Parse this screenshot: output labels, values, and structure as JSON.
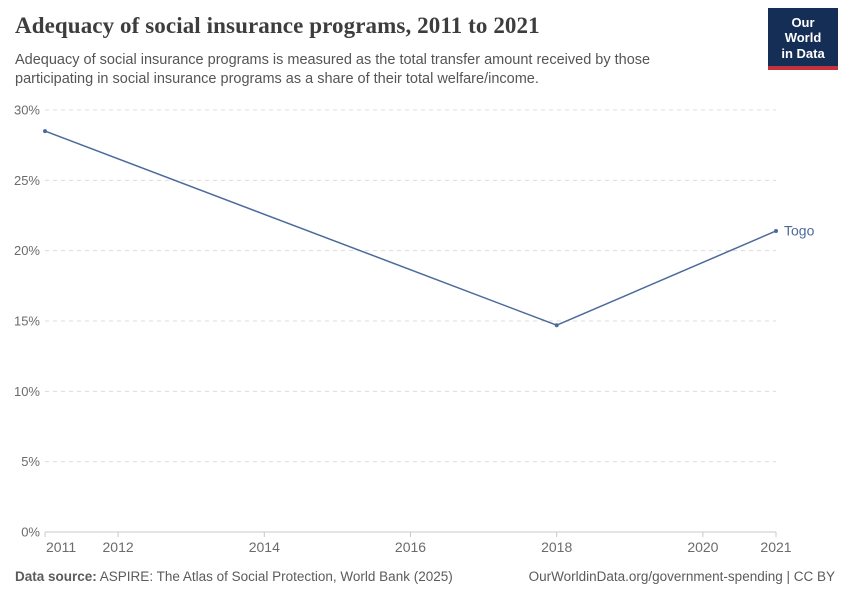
{
  "header": {
    "title": "Adequacy of social insurance programs, 2011 to 2021",
    "subtitle": "Adequacy of social insurance programs is measured as the total transfer amount received by those participating in social insurance programs as a share of their total welfare/income.",
    "logo": {
      "line1": "Our World",
      "line2": "in Data",
      "bg_color": "#152e56",
      "bar_color": "#c4333d"
    }
  },
  "chart_data": {
    "type": "line",
    "title": "Adequacy of social insurance programs, 2011 to 2021",
    "series": [
      {
        "name": "Togo",
        "x": [
          2011,
          2018,
          2021
        ],
        "values": [
          28.5,
          14.7,
          21.4
        ]
      }
    ],
    "xlim": [
      2011,
      2021
    ],
    "ylim": [
      0,
      30
    ],
    "xticks": [
      2011,
      2012,
      2014,
      2016,
      2018,
      2020,
      2021
    ],
    "yticks": [
      0,
      5,
      10,
      15,
      20,
      25,
      30
    ],
    "ytick_suffix": "%",
    "grid": "horizontal-dashed",
    "legend": "end-of-line-label",
    "colors": {
      "line": "#4c6a9c",
      "grid": "#dcdcdc",
      "axis": "#c8c8c8",
      "tick_label": "#6b6b6b",
      "series_label": "#4c6a9c"
    }
  },
  "footer": {
    "datasource_label": "Data source:",
    "datasource_text": "ASPIRE: The Atlas of Social Protection, World Bank (2025)",
    "attribution": "OurWorldinData.org/government-spending | CC BY"
  }
}
